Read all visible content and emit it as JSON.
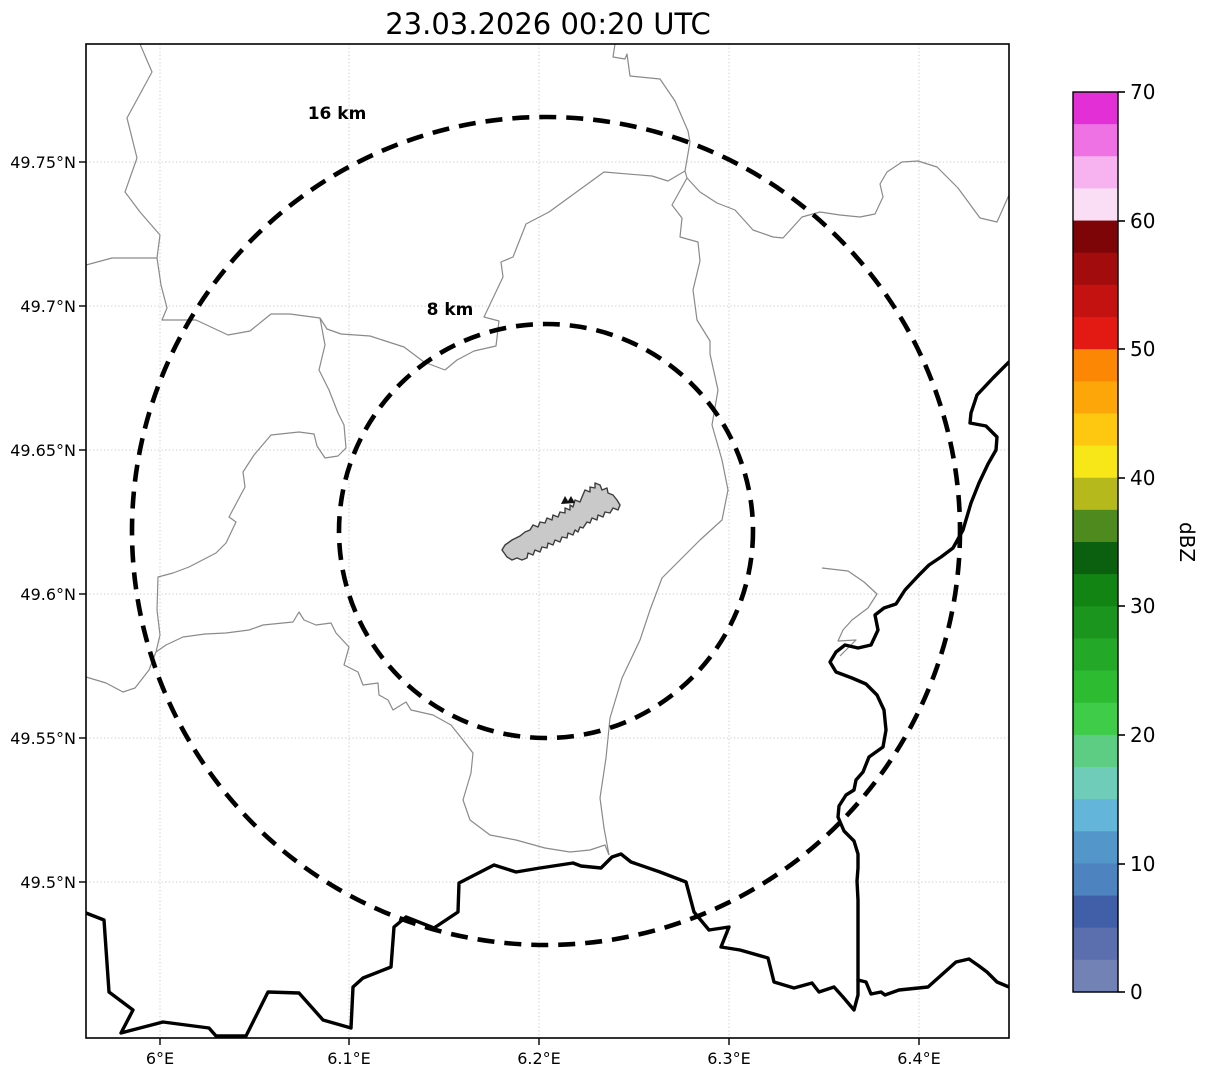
{
  "title": "23.03.2026 00:20 UTC",
  "map": {
    "x_axis": {
      "ticks": [
        "6°E",
        "6.1°E",
        "6.2°E",
        "6.3°E",
        "6.4°E"
      ]
    },
    "y_axis": {
      "ticks": [
        "49.75°N",
        "49.7°N",
        "49.65°N",
        "49.6°N",
        "49.55°N",
        "49.5°N"
      ]
    },
    "range_rings": [
      {
        "label": "16 km",
        "radius_km": 16
      },
      {
        "label": "8 km",
        "radius_km": 8
      }
    ],
    "features": {
      "city_polygon_fill": "#c9c9c9",
      "city_polygon_stroke": "#3d3d3d",
      "country_border_color": "#000000",
      "admin_boundary_color": "#8a8a8a",
      "grid_color": "#c9c9c9",
      "range_ring_color": "#000000"
    }
  },
  "colorbar": {
    "label": "dBZ",
    "ticks": [
      "70",
      "60",
      "50",
      "40",
      "30",
      "20",
      "10",
      "0"
    ],
    "min": 0,
    "max": 70,
    "step": 2.5,
    "colors_bottom_to_top": [
      "#7282b4",
      "#5b6fae",
      "#415fa9",
      "#4d84c0",
      "#5396ca",
      "#63b6d9",
      "#6fccb8",
      "#5ccd82",
      "#3ecc49",
      "#2dbb31",
      "#24a828",
      "#1b951e",
      "#128414",
      "#0b600f",
      "#4f8a1f",
      "#b5b91c",
      "#f7e719",
      "#fdc80f",
      "#fda60a",
      "#fb8705",
      "#e31a13",
      "#c41210",
      "#a30c0c",
      "#7d0508",
      "#fadef5",
      "#f7b3ef",
      "#ee72e4",
      "#e22fd6"
    ]
  }
}
